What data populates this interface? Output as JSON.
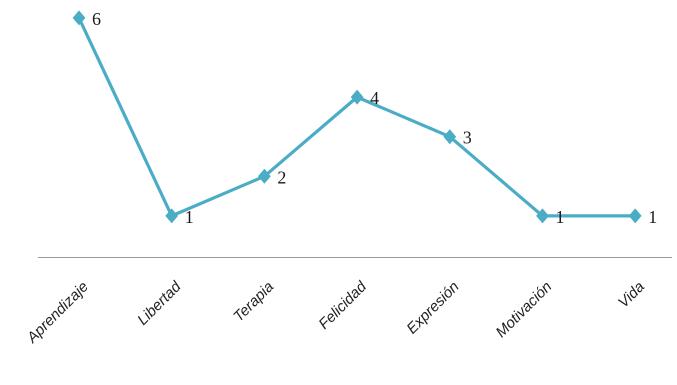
{
  "chart_data": {
    "type": "line",
    "title": "",
    "xlabel": "",
    "ylabel": "",
    "categories": [
      "Aprendizaje",
      "Libertad",
      "Terapia",
      "Felicidad",
      "Expresión",
      "Motivación",
      "Vida"
    ],
    "series": [
      {
        "values": [
          6,
          1,
          2,
          4,
          3,
          1,
          1
        ],
        "color": "#4bacc6"
      }
    ],
    "ylim": [
      0,
      6
    ],
    "grid": false,
    "legend": "none",
    "data_labels": true,
    "marker": "diamond",
    "axis_color": "#999999"
  }
}
